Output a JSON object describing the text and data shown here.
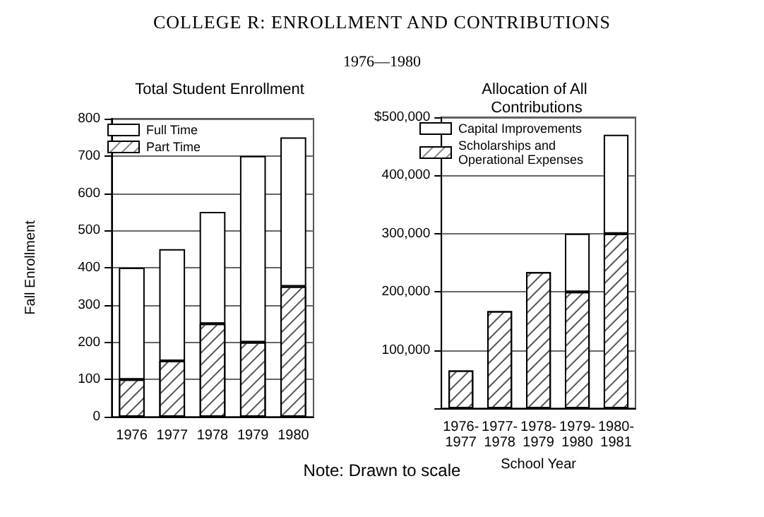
{
  "chart_data": [
    {
      "type": "other",
      "title": "COLLEGE R: ENROLLMENT AND CONTRIBUTIONS",
      "subtitle": "1976—1980",
      "annotations": [
        "Note: Drawn to scale"
      ]
    },
    {
      "type": "bar",
      "title": "Total Student Enrollment",
      "ylabel": "Fall Enrollment",
      "categories": [
        "1976",
        "1977",
        "1978",
        "1979",
        "1980"
      ],
      "stacked": true,
      "series": [
        {
          "name": "Part Time",
          "color": "#ffffff",
          "values": [
            100,
            150,
            250,
            200,
            350
          ]
        },
        {
          "name": "Full Time",
          "color": "#ffffff",
          "values": [
            300,
            300,
            300,
            500,
            400
          ]
        }
      ],
      "ylim": [
        0,
        800
      ],
      "yticks": [
        0,
        100,
        200,
        300,
        400,
        500,
        600,
        700,
        800
      ],
      "grid": "y",
      "legend": "top left"
    },
    {
      "type": "bar",
      "title": "Allocation of All Contributions",
      "xlabel": "School Year",
      "categories": [
        "1976-1977",
        "1977-1978",
        "1978-1979",
        "1979-1980",
        "1980-1981"
      ],
      "stacked": true,
      "series": [
        {
          "name": "Scholarships and Operational Expenses",
          "color": "#ffffff",
          "values": [
            65000,
            167000,
            234000,
            200000,
            300000
          ]
        },
        {
          "name": "Capital Improvements",
          "color": "#ffffff",
          "values": [
            null,
            null,
            null,
            100000,
            170000
          ]
        }
      ],
      "ylim": [
        0,
        500000
      ],
      "yticks": [
        {
          "value": 0,
          "label": null
        },
        {
          "value": 100000,
          "label": "100,000"
        },
        {
          "value": 200000,
          "label": "200,000"
        },
        {
          "value": 300000,
          "label": "300,000"
        },
        {
          "value": 400000,
          "label": "400,000"
        },
        {
          "value": 500000,
          "label": "$500,000"
        }
      ],
      "grid": "y",
      "legend": "top left"
    }
  ]
}
